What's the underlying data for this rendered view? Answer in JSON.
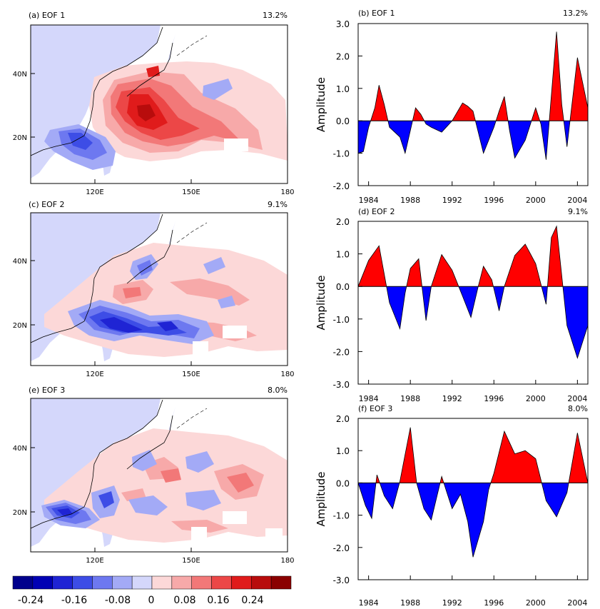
{
  "palette": [
    "#00008c",
    "#0000b4",
    "#1f24d4",
    "#3d4de6",
    "#6d78f0",
    "#a3aaf6",
    "#d4d7fb",
    "#fcd8d8",
    "#f7a9a9",
    "#f27878",
    "#ec4747",
    "#e01b1b",
    "#b80c0c",
    "#8a0000"
  ],
  "land_color": "#d4d7fb",
  "maps": [
    {
      "title": "(a) EOF 1",
      "percent": "13.2%"
    },
    {
      "title": "(c) EOF 2",
      "percent": "9.1%"
    },
    {
      "title": "(e) EOF 3",
      "percent": "8.0%"
    }
  ],
  "map_axes": {
    "lat_labels": [
      "40N",
      "20N"
    ],
    "lon_labels": [
      "120E",
      "150E",
      "180"
    ]
  },
  "colorbar": {
    "labels": [
      "-0.24",
      "-0.16",
      "-0.08",
      "0",
      "0.08",
      "0.16",
      "0.24"
    ]
  },
  "chart_data": [
    {
      "type": "area",
      "title": "(b) EOF 1",
      "percent": "13.2%",
      "ylabel": "Amplitude",
      "ylim": [
        -2,
        3
      ],
      "yticks": [
        "3.0",
        "2.0",
        "1.0",
        "0.0",
        "-1.0",
        "-2.0"
      ],
      "yvals": [
        3,
        2,
        1,
        0,
        -1,
        -2
      ],
      "xlim": [
        1983,
        2005
      ],
      "xticks": [
        "1984",
        "1988",
        "1992",
        "1996",
        "2000",
        "2004"
      ],
      "xvals": [
        1984,
        1988,
        1992,
        1996,
        2000,
        2004
      ],
      "x": [
        1983,
        1983.5,
        1984,
        1984.6,
        1985,
        1985.5,
        1986,
        1987,
        1987.5,
        1988,
        1988.5,
        1989,
        1989.5,
        1990,
        1991,
        1992,
        1993,
        1993.5,
        1994,
        1995,
        1996,
        1996.5,
        1997,
        1997.5,
        1998,
        1999,
        2000,
        2000.5,
        2001,
        2002,
        2002.5,
        2003,
        2004,
        2005
      ],
      "values": [
        -1.0,
        -0.95,
        -0.2,
        0.4,
        1.1,
        0.5,
        -0.2,
        -0.5,
        -1.0,
        -0.3,
        0.4,
        0.2,
        -0.1,
        -0.2,
        -0.35,
        0.0,
        0.55,
        0.45,
        0.3,
        -1.0,
        -0.2,
        0.3,
        0.75,
        -0.3,
        -1.15,
        -0.6,
        0.4,
        -0.1,
        -1.2,
        2.75,
        0.5,
        -0.8,
        1.95,
        0.4
      ]
    },
    {
      "type": "area",
      "title": "(d) EOF 2",
      "percent": "9.1%",
      "ylabel": "Amplitude",
      "ylim": [
        -3,
        2
      ],
      "yticks": [
        "2.0",
        "1.0",
        "0.0",
        "-1.0",
        "-2.0",
        "-3.0"
      ],
      "yvals": [
        2,
        1,
        0,
        -1,
        -2,
        -3
      ],
      "xlim": [
        1983,
        2005
      ],
      "xticks": [
        "1984",
        "1988",
        "1992",
        "1996",
        "2000",
        "2004"
      ],
      "xvals": [
        1984,
        1988,
        1992,
        1996,
        2000,
        2004
      ],
      "x": [
        1983,
        1984,
        1985,
        1986,
        1987,
        1987.5,
        1988,
        1988.8,
        1989.5,
        1990,
        1991,
        1992,
        1993,
        1993.8,
        1994.5,
        1995,
        1995.8,
        1996.5,
        1997,
        1998,
        1999,
        2000,
        2001,
        2001.5,
        2002,
        2003,
        2004,
        2005
      ],
      "values": [
        0.0,
        0.8,
        1.25,
        -0.5,
        -1.3,
        -0.2,
        0.55,
        0.85,
        -1.05,
        0.0,
        0.98,
        0.5,
        -0.3,
        -0.95,
        0.0,
        0.62,
        0.2,
        -0.75,
        0.0,
        0.95,
        1.3,
        0.7,
        -0.55,
        1.5,
        1.85,
        -1.2,
        -2.2,
        -1.2
      ]
    },
    {
      "type": "area",
      "title": "(f) EOF 3",
      "percent": "8.0%",
      "ylabel": "Amplitude",
      "ylim": [
        -3,
        2
      ],
      "yticks": [
        "2.0",
        "1.0",
        "0.0",
        "-1.0",
        "-2.0",
        "-3.0"
      ],
      "yvals": [
        2,
        1,
        0,
        -1,
        -2,
        -3
      ],
      "xlim": [
        1983,
        2005
      ],
      "xticks": [
        "1984",
        "1988",
        "1992",
        "1996",
        "2000",
        "2004"
      ],
      "xvals": [
        1984,
        1988,
        1992,
        1996,
        2000,
        2004
      ],
      "x": [
        1983,
        1983.7,
        1984.3,
        1984.8,
        1985.5,
        1986.3,
        1987,
        1988,
        1988.6,
        1989.3,
        1990,
        1991,
        1991.5,
        1992,
        1992.8,
        1993.5,
        1994,
        1995,
        1995.5,
        1996,
        1997,
        1998,
        1999,
        2000,
        2001,
        2002,
        2003,
        2004,
        2005
      ],
      "values": [
        0.0,
        -0.7,
        -1.1,
        0.25,
        -0.4,
        -0.8,
        0.05,
        1.72,
        0.0,
        -0.8,
        -1.15,
        0.2,
        -0.3,
        -0.8,
        -0.35,
        -1.2,
        -2.3,
        -1.2,
        -0.2,
        0.3,
        1.6,
        0.9,
        1.0,
        0.75,
        -0.55,
        -1.05,
        -0.3,
        1.55,
        0.0
      ]
    }
  ]
}
